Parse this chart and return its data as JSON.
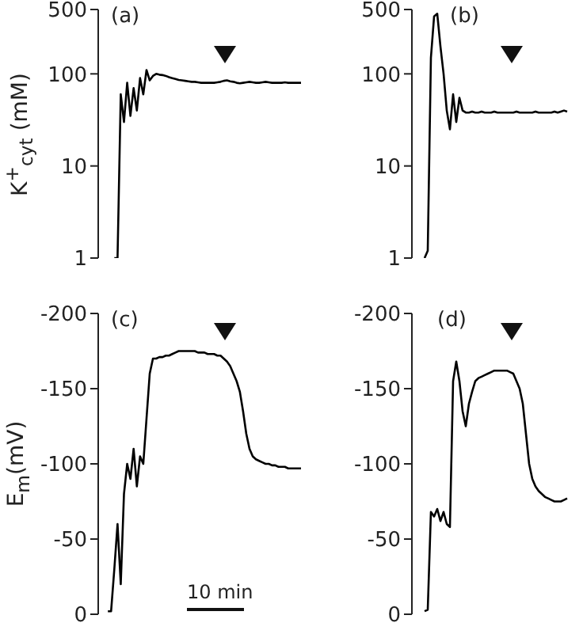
{
  "chart_data": [
    {
      "type": "line",
      "title": "(a)",
      "ylabel": "K$^{+}$$_{cyt}$ (mM)",
      "log": "y",
      "tick_labels": "y",
      "ylim": [
        1,
        500
      ],
      "yticks": [
        1,
        10,
        100,
        500
      ],
      "categories": [
        null,
        null,
        null,
        null,
        null,
        null,
        null,
        null,
        null,
        null,
        null,
        null,
        null,
        null,
        null,
        null,
        null,
        null,
        null,
        null,
        null,
        null,
        null,
        null,
        null,
        null,
        null,
        null,
        null,
        null,
        null,
        null,
        null,
        null,
        null,
        null,
        null,
        null,
        null,
        null,
        null,
        null,
        null,
        null,
        null,
        null,
        null,
        null,
        null,
        null,
        null,
        null,
        null,
        null,
        null,
        null,
        null,
        null,
        null,
        null,
        null,
        null,
        null,
        null
      ],
      "series": [
        {
          "color": "#000000",
          "values": [
            null,
            null,
            null,
            null,
            null,
            1,
            1,
            60,
            30,
            80,
            35,
            70,
            40,
            90,
            60,
            110,
            85,
            95,
            100,
            98,
            97,
            95,
            92,
            90,
            88,
            86,
            85,
            84,
            83,
            82,
            82,
            81,
            80,
            80,
            80,
            80,
            80,
            81,
            82,
            84,
            85,
            83,
            82,
            80,
            79,
            80,
            81,
            82,
            81,
            80,
            80,
            81,
            82,
            81,
            80,
            80,
            80,
            80,
            81,
            80,
            80,
            80,
            80,
            80
          ]
        }
      ]
    },
    {
      "type": "line",
      "title": "(b)",
      "log": "y",
      "tick_labels": "y",
      "ylim": [
        1,
        500
      ],
      "yticks": [
        1,
        10,
        100,
        500
      ],
      "categories": [
        null,
        null,
        null,
        null,
        null,
        null,
        null,
        null,
        null,
        null,
        null,
        null,
        null,
        null,
        null,
        null,
        null,
        null,
        null,
        null,
        null,
        null,
        null,
        null,
        null,
        null,
        null,
        null,
        null,
        null,
        null,
        null,
        null,
        null,
        null,
        null,
        null,
        null,
        null,
        null,
        null,
        null,
        null,
        null,
        null,
        null,
        null,
        null,
        null,
        null
      ],
      "series": [
        {
          "color": "#000000",
          "values": [
            null,
            null,
            null,
            null,
            1,
            1.2,
            150,
            420,
            450,
            200,
            100,
            40,
            25,
            60,
            30,
            55,
            40,
            38,
            38,
            39,
            38,
            38,
            39,
            38,
            38,
            38,
            39,
            38,
            38,
            38,
            38,
            38,
            38,
            39,
            38,
            38,
            38,
            38,
            38,
            39,
            38,
            38,
            38,
            38,
            38,
            39,
            38,
            39,
            40,
            39
          ]
        }
      ]
    },
    {
      "type": "line",
      "title": "(c)",
      "ylabel": "E$_{m}$(mV)",
      "tick_labels": "y",
      "ylim": [
        0,
        -200
      ],
      "yticks": [
        -200,
        -150,
        -100,
        -50,
        0
      ],
      "annotations": [
        "10 min"
      ],
      "categories": [
        null,
        null,
        null,
        null,
        null,
        null,
        null,
        null,
        null,
        null,
        null,
        null,
        null,
        null,
        null,
        null,
        null,
        null,
        null,
        null,
        null,
        null,
        null,
        null,
        null,
        null,
        null,
        null,
        null,
        null,
        null,
        null,
        null,
        null,
        null,
        null,
        null,
        null,
        null,
        null,
        null,
        null,
        null,
        null,
        null,
        null,
        null,
        null,
        null,
        null,
        null,
        null,
        null,
        null,
        null,
        null,
        null,
        null,
        null,
        null,
        null,
        null,
        null,
        null
      ],
      "series": [
        {
          "color": "#000000",
          "values": [
            null,
            null,
            null,
            -2,
            -2,
            -30,
            -60,
            -20,
            -80,
            -100,
            -90,
            -110,
            -85,
            -105,
            -100,
            -130,
            -160,
            -170,
            -170,
            -171,
            -171,
            -172,
            -172,
            -173,
            -174,
            -175,
            -175,
            -175,
            -175,
            -175,
            -175,
            -174,
            -174,
            -174,
            -173,
            -173,
            -173,
            -172,
            -172,
            -170,
            -168,
            -165,
            -160,
            -155,
            -148,
            -135,
            -120,
            -110,
            -105,
            -103,
            -102,
            -101,
            -100,
            -100,
            -99,
            -99,
            -98,
            -98,
            -98,
            -97,
            -97,
            -97,
            -97,
            -97
          ]
        }
      ]
    },
    {
      "type": "line",
      "title": "(d)",
      "tick_labels": "y",
      "ylim": [
        0,
        -200
      ],
      "yticks": [
        -200,
        -150,
        -100,
        -50,
        0
      ],
      "categories": [
        null,
        null,
        null,
        null,
        null,
        null,
        null,
        null,
        null,
        null,
        null,
        null,
        null,
        null,
        null,
        null,
        null,
        null,
        null,
        null,
        null,
        null,
        null,
        null,
        null,
        null,
        null,
        null,
        null,
        null,
        null,
        null,
        null,
        null,
        null,
        null,
        null,
        null,
        null,
        null,
        null,
        null,
        null,
        null,
        null,
        null,
        null,
        null,
        null,
        null
      ],
      "series": [
        {
          "color": "#000000",
          "values": [
            null,
            null,
            null,
            null,
            -2,
            -3,
            -68,
            -65,
            -70,
            -62,
            -68,
            -60,
            -58,
            -155,
            -168,
            -155,
            -135,
            -125,
            -140,
            -148,
            -155,
            -157,
            -158,
            -159,
            -160,
            -161,
            -162,
            -162,
            -162,
            -162,
            -162,
            -161,
            -160,
            -155,
            -150,
            -140,
            -120,
            -100,
            -90,
            -85,
            -82,
            -80,
            -78,
            -77,
            -76,
            -75,
            -75,
            -75,
            -76,
            -77
          ]
        }
      ]
    }
  ]
}
